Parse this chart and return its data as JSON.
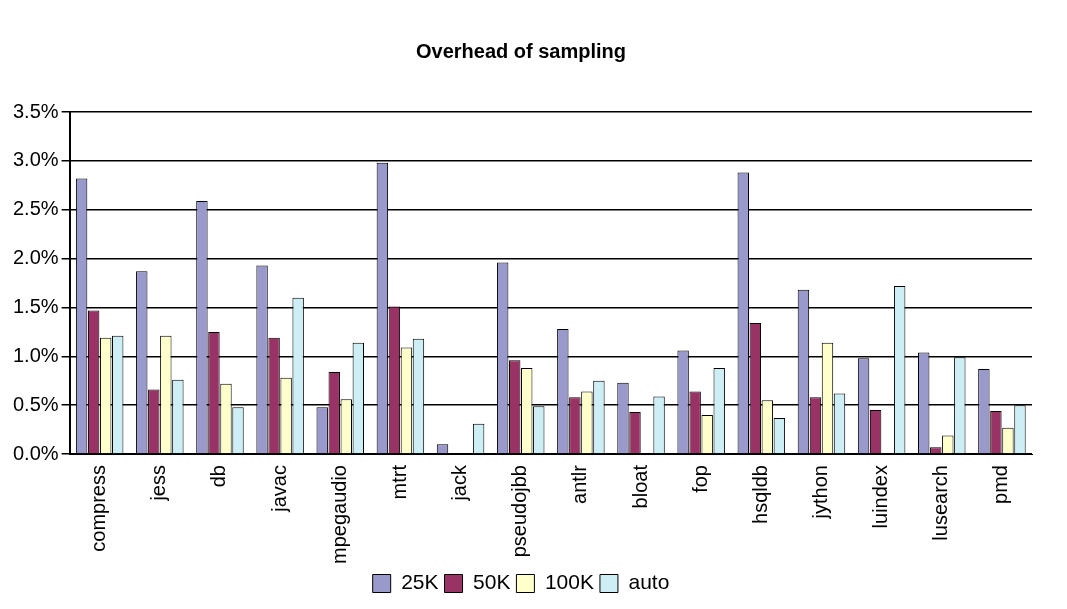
{
  "chart_data": {
    "type": "bar",
    "title": "Overhead of sampling",
    "categories": [
      "compress",
      "jess",
      "db",
      "javac",
      "mpegaudio",
      "mtrt",
      "jack",
      "pseudojbb",
      "antlr",
      "bloat",
      "fop",
      "hsqldb",
      "jython",
      "luindex",
      "lusearch",
      "pmd"
    ],
    "series": [
      {
        "name": "25K",
        "color": "#9999cc",
        "values": [
          2.82,
          1.87,
          2.59,
          1.93,
          0.48,
          2.98,
          0.1,
          1.96,
          1.28,
          0.73,
          1.06,
          2.88,
          1.68,
          0.98,
          1.04,
          0.87
        ]
      },
      {
        "name": "50K",
        "color": "#993366",
        "values": [
          1.47,
          0.66,
          1.25,
          1.19,
          0.84,
          1.51,
          null,
          0.96,
          0.58,
          0.43,
          0.64,
          1.34,
          0.58,
          0.45,
          0.07,
          0.44
        ]
      },
      {
        "name": "100K",
        "color": "#ffffcc",
        "values": [
          1.19,
          1.21,
          0.72,
          0.78,
          0.56,
          1.09,
          null,
          0.88,
          0.64,
          null,
          0.4,
          0.55,
          1.14,
          null,
          0.19,
          0.27
        ]
      },
      {
        "name": "auto",
        "color": "#cceef4",
        "values": [
          1.21,
          0.76,
          0.48,
          1.6,
          1.14,
          1.18,
          0.31,
          0.49,
          0.75,
          0.59,
          0.88,
          0.37,
          0.62,
          1.72,
          0.99,
          0.5
        ]
      }
    ],
    "ylim": [
      0,
      3.5
    ],
    "yticks": [
      {
        "value": 0,
        "label": "0.0%"
      },
      {
        "value": 0.5,
        "label": "0.5%"
      },
      {
        "value": 1,
        "label": "1.0%"
      },
      {
        "value": 1.5,
        "label": "1.5%"
      },
      {
        "value": 2,
        "label": "2.0%"
      },
      {
        "value": 2.5,
        "label": "2.5%"
      },
      {
        "value": 3,
        "label": "3.0%"
      },
      {
        "value": 3.5,
        "label": "3.5%"
      }
    ],
    "grid": "y",
    "legend": "bottom"
  }
}
